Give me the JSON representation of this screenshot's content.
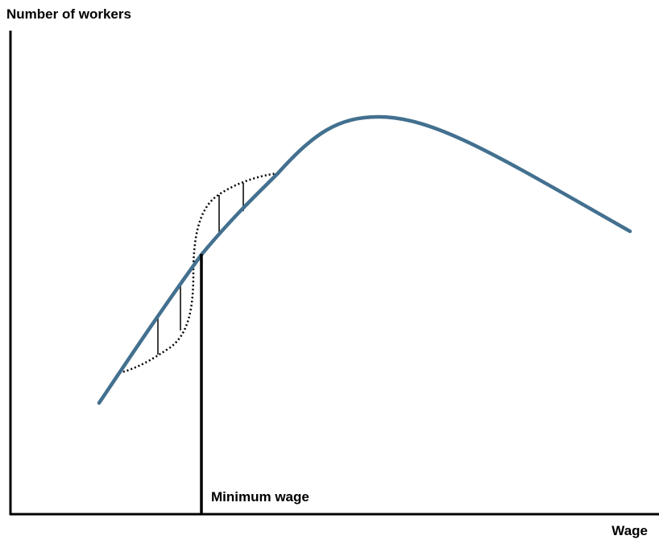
{
  "y_axis_label": "Number of workers",
  "x_axis_label": "Wage",
  "annotation": "Minimum wage"
}
